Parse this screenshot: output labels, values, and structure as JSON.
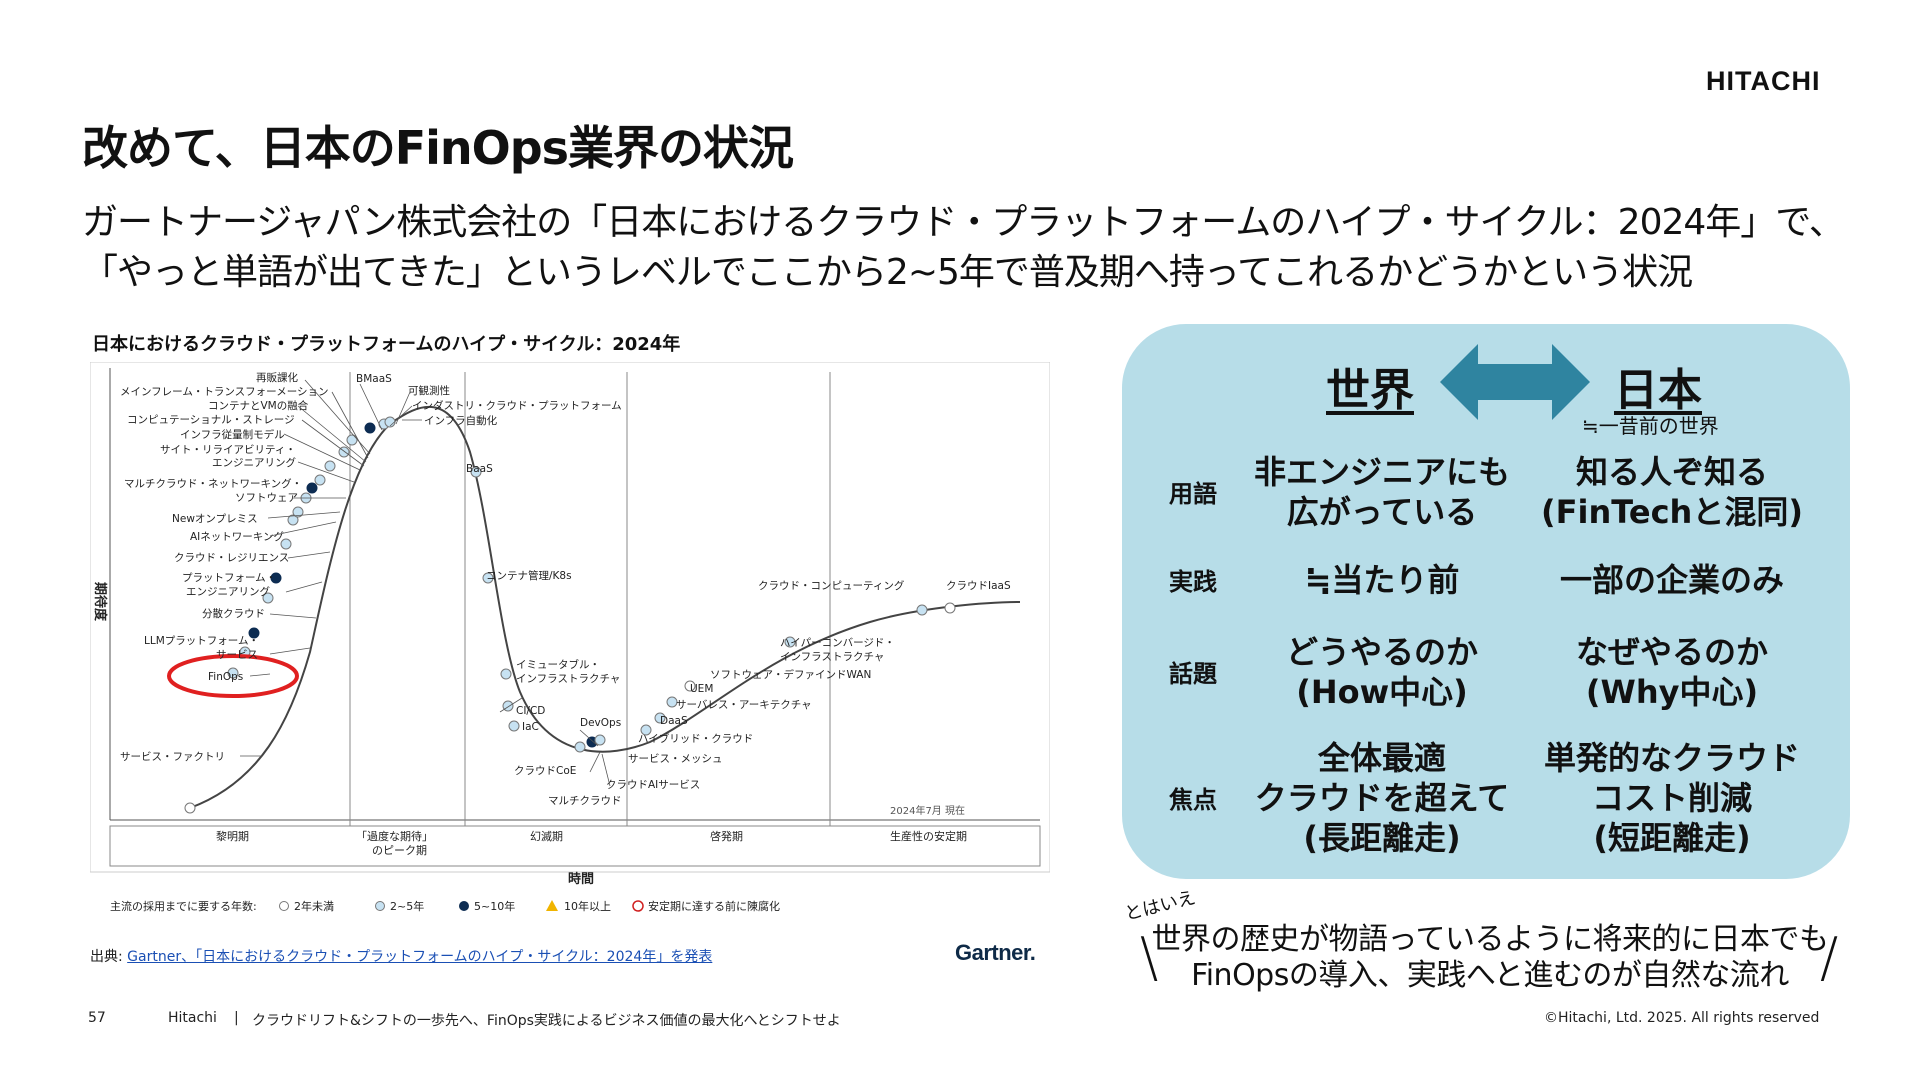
{
  "header": {
    "logo": "HITACHI",
    "title": "改めて、日本のFinOps業界の状況",
    "subtitle_line1": "ガートナージャパン株式会社の「日本におけるクラウド・プラットフォームのハイプ・サイクル：2024年」で、",
    "subtitle_line2": "「やっと単語が出てきた」というレベルでここから2~5年で普及期へ持ってこれるかどうかという状況"
  },
  "chart": {
    "title": "日本におけるクラウド・プラットフォームのハイプ・サイクル：2024年",
    "ylabel": "期待度",
    "xlabel": "時間",
    "phases": [
      "黎明期",
      "「過度な期待」",
      "のピーク期",
      "幻滅期",
      "啓発期",
      "生産性の安定期"
    ],
    "as_of": "2024年7月 現在",
    "legend_prefix": "主流の採用までに要する年数:",
    "legend": [
      "2年未満",
      "2~5年",
      "5~10年",
      "10年以上",
      "安定期に達する前に陳腐化"
    ],
    "labels": {
      "saibanka": "再販課化",
      "mainframe": "メインフレーム・トランスフォーメーション",
      "container_vmo": "コンテナとVMの融合",
      "computational_storage": "コンピュテーショナル・ストレージ",
      "infra_model": "インフラ従量制モデル",
      "sre1": "サイト・リライアビリティ・",
      "sre2": "エンジニアリング",
      "multicloud_net1": "マルチクラウド・ネットワーキング・",
      "multicloud_net2": "ソフトウェア",
      "new_onprem": "Newオンプレミス",
      "ai_networking": "AIネットワーキング",
      "cloud_resilience": "クラウド・レジリエンス",
      "platform_eng1": "プラットフォーム・",
      "platform_eng2": "エンジニアリング",
      "distributed_cloud": "分散クラウド",
      "llm_platform1": "LLMプラットフォーム・",
      "llm_platform2": "サービス",
      "finops": "FinOps",
      "service_factory": "サービス・ファクトリ",
      "bmaas": "BMaaS",
      "observability": "可観測性",
      "industry_cloud": "インダストリ・クラウド・プラットフォーム",
      "infra_automation": "インフラ自動化",
      "baas": "BaaS",
      "container_k8s": "コンテナ管理/K8s",
      "immutable1": "イミュータブル・",
      "immutable2": "インフラストラクチャ",
      "cicd": "CI/CD",
      "iac": "IaC",
      "devops": "DevOps",
      "cloud_coe": "クラウドCoE",
      "multicloud": "マルチクラウド",
      "cloud_ai": "クラウドAIサービス",
      "service_mesh": "サービス・メッシュ",
      "hybrid_cloud": "ハイブリッド・クラウド",
      "daas": "DaaS",
      "serverless": "サーバレス・アーキテクチャ",
      "uem": "UEM",
      "sdwan": "ソフトウェア・デファインドWAN",
      "hyperconverged1": "ハイパーコンバージド・",
      "hyperconverged2": "インフラストラクチャ",
      "cloud_computing": "クラウド・コンピューティング",
      "cloud_iaas": "クラウドIaaS"
    }
  },
  "source": {
    "prefix": "出典: ",
    "link": "Gartner、「日本におけるクラウド・プラットフォームのハイプ・サイクル：2024年」を発表",
    "brand": "Gartner."
  },
  "comparison": {
    "left_heading": "世界",
    "right_heading": "日本",
    "right_sub": "≒一昔前の世界",
    "rows": [
      {
        "label": "用語",
        "world": [
          "非エンジニアにも",
          "広がっている"
        ],
        "japan": [
          "知る人ぞ知る",
          "(FinTechと混同)"
        ]
      },
      {
        "label": "実践",
        "world": [
          "≒当たり前"
        ],
        "japan": [
          "一部の企業のみ"
        ]
      },
      {
        "label": "話題",
        "world": [
          "どうやるのか",
          "(How中心)"
        ],
        "japan": [
          "なぜやるのか",
          "(Why中心)"
        ]
      },
      {
        "label": "焦点",
        "world": [
          "全体最適",
          "クラウドを超えて",
          "(長距離走)"
        ],
        "japan": [
          "単発的なクラウド",
          "コスト削減",
          "(短距離走)"
        ]
      }
    ]
  },
  "note": {
    "lead": "とはいえ",
    "line1": "世界の歴史が物語っているように将来的に日本でも",
    "line2": "FinOpsの導入、実践へと進むのが自然な流れ"
  },
  "footer": {
    "page": "57",
    "brand": "Hitachi",
    "separator": "|",
    "tagline": "クラウドリフト&シフトの一歩先へ、FinOps実践によるビジネス価値の最大化へとシフトせよ",
    "copyright": "©Hitachi, Ltd. 2025. All rights reserved"
  },
  "colors": {
    "panel": "#b7dde8",
    "arrow": "#2f84a0",
    "highlight": "#e02020",
    "dot_2_5": "#c7e2f2",
    "dot_5_10": "#0d2c52"
  }
}
